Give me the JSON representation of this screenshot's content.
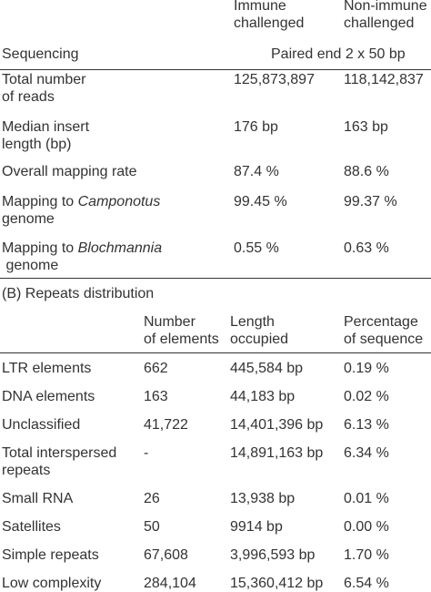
{
  "sectionA": {
    "col_headers": [
      [
        "Immune",
        "challenged"
      ],
      [
        "Non-immune",
        "challenged"
      ]
    ],
    "sequencing_label": "Sequencing",
    "sequencing_value": "Paired end 2 x 50 bp",
    "rows": [
      {
        "label": [
          "Total number",
          "of reads"
        ],
        "immune": "125,873,897",
        "non_immune": "118,142,837"
      },
      {
        "label": [
          "Median insert",
          "length (bp)"
        ],
        "immune": "176 bp",
        "non_immune": "163 bp"
      },
      {
        "label": [
          "Overall mapping rate"
        ],
        "immune": "87.4 %",
        "non_immune": "88.6 %"
      },
      {
        "label_prefix": "Mapping to ",
        "label_italic": "Camponotus",
        "label_line2": "genome",
        "immune": "99.45 %",
        "non_immune": "99.37 %"
      },
      {
        "label_prefix": "Mapping to ",
        "label_italic": "Blochmannia",
        "label_line2": " genome",
        "immune": "0.55 %",
        "non_immune": "0.63 %"
      }
    ]
  },
  "sectionB": {
    "title": "(B) Repeats distribution",
    "col_headers": [
      [
        "Number",
        "of elements"
      ],
      [
        "Length",
        "occupied"
      ],
      [
        "Percentage",
        "of sequence"
      ]
    ],
    "rows": [
      {
        "label": [
          "LTR elements"
        ],
        "number": "662",
        "length": "445,584 bp",
        "percentage": "0.19 %"
      },
      {
        "label": [
          "DNA elements"
        ],
        "number": "163",
        "length": "44,183 bp",
        "percentage": "0.02 %"
      },
      {
        "label": [
          "Unclassified"
        ],
        "number": "41,722",
        "length": "14,401,396 bp",
        "percentage": "6.13 %"
      },
      {
        "label": [
          "Total interspersed",
          "repeats"
        ],
        "number": "-",
        "length": "14,891,163 bp",
        "percentage": "6.34 %"
      },
      {
        "label": [
          "Small RNA"
        ],
        "number": "26",
        "length": "13,938 bp",
        "percentage": "0.01 %"
      },
      {
        "label": [
          "Satellites"
        ],
        "number": "50",
        "length": "9914 bp",
        "percentage": "0.00 %"
      },
      {
        "label": [
          "Simple repeats"
        ],
        "number": "67,608",
        "length": "3,996,593 bp",
        "percentage": "1.70 %"
      },
      {
        "label": [
          "Low complexity"
        ],
        "number": "284,104",
        "length": "15,360,412 bp",
        "percentage": "6.54 %"
      }
    ]
  }
}
